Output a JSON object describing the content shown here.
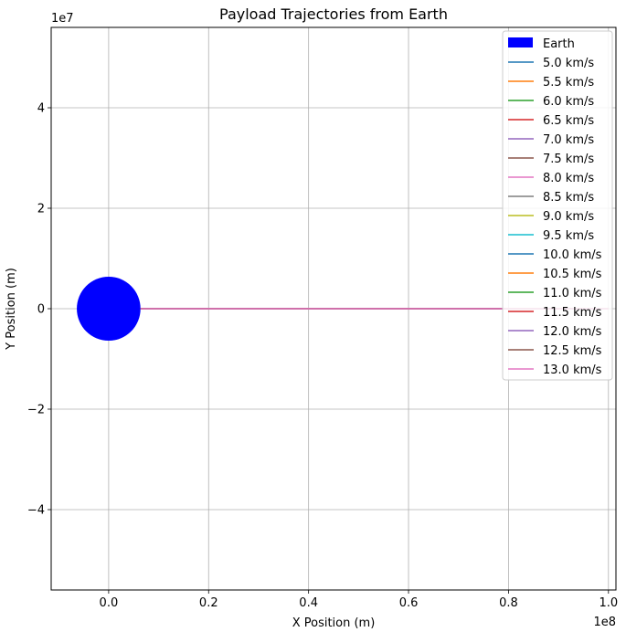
{
  "chart_data": {
    "type": "line",
    "title": "Payload Trajectories from Earth",
    "xlabel": "X Position (m)",
    "ylabel": "Y Position (m)",
    "xlim": [
      -11500000,
      101500000
    ],
    "ylim": [
      -56000000,
      56000000
    ],
    "x_ticks": [
      0,
      20000000,
      40000000,
      60000000,
      80000000,
      100000000
    ],
    "x_tick_labels": [
      "0.0",
      "0.2",
      "0.4",
      "0.6",
      "0.8",
      "1.0"
    ],
    "y_ticks": [
      -40000000,
      -20000000,
      0,
      20000000,
      40000000
    ],
    "y_tick_labels": [
      "−4",
      "−2",
      "0",
      "2",
      "4"
    ],
    "x_offset_label": "1e8",
    "y_offset_label": "1e7",
    "grid": true,
    "legend_position": "upper-right",
    "earth": {
      "label": "Earth",
      "center": [
        0,
        0
      ],
      "radius": 6371000,
      "color": "#0000ff"
    },
    "series": [
      {
        "name": "5.0 km/s",
        "color": "#1f77b4",
        "x": [
          6371000,
          100000000
        ],
        "y": [
          0,
          0
        ]
      },
      {
        "name": "5.5 km/s",
        "color": "#ff7f0e",
        "x": [
          6371000,
          100000000
        ],
        "y": [
          0,
          0
        ]
      },
      {
        "name": "6.0 km/s",
        "color": "#2ca02c",
        "x": [
          6371000,
          100000000
        ],
        "y": [
          0,
          0
        ]
      },
      {
        "name": "6.5 km/s",
        "color": "#d62728",
        "x": [
          6371000,
          100000000
        ],
        "y": [
          0,
          0
        ]
      },
      {
        "name": "7.0 km/s",
        "color": "#9467bd",
        "x": [
          6371000,
          100000000
        ],
        "y": [
          0,
          0
        ]
      },
      {
        "name": "7.5 km/s",
        "color": "#8c564b",
        "x": [
          6371000,
          100000000
        ],
        "y": [
          0,
          0
        ]
      },
      {
        "name": "8.0 km/s",
        "color": "#e377c2",
        "x": [
          6371000,
          100000000
        ],
        "y": [
          0,
          0
        ]
      },
      {
        "name": "8.5 km/s",
        "color": "#7f7f7f",
        "x": [
          6371000,
          100000000
        ],
        "y": [
          0,
          0
        ]
      },
      {
        "name": "9.0 km/s",
        "color": "#bcbd22",
        "x": [
          6371000,
          100000000
        ],
        "y": [
          0,
          0
        ]
      },
      {
        "name": "9.5 km/s",
        "color": "#17becf",
        "x": [
          6371000,
          100000000
        ],
        "y": [
          0,
          0
        ]
      },
      {
        "name": "10.0 km/s",
        "color": "#1f77b4",
        "x": [
          6371000,
          100000000
        ],
        "y": [
          0,
          0
        ]
      },
      {
        "name": "10.5 km/s",
        "color": "#ff7f0e",
        "x": [
          6371000,
          100000000
        ],
        "y": [
          0,
          0
        ]
      },
      {
        "name": "11.0 km/s",
        "color": "#2ca02c",
        "x": [
          6371000,
          100000000
        ],
        "y": [
          0,
          0
        ]
      },
      {
        "name": "11.5 km/s",
        "color": "#d62728",
        "x": [
          6371000,
          100000000
        ],
        "y": [
          0,
          0
        ]
      },
      {
        "name": "12.0 km/s",
        "color": "#9467bd",
        "x": [
          6371000,
          100000000
        ],
        "y": [
          0,
          0
        ]
      },
      {
        "name": "12.5 km/s",
        "color": "#8c564b",
        "x": [
          6371000,
          100000000
        ],
        "y": [
          0,
          0
        ]
      },
      {
        "name": "13.0 km/s",
        "color": "#e377c2",
        "x": [
          6371000,
          100000000
        ],
        "y": [
          0,
          0
        ]
      }
    ]
  }
}
